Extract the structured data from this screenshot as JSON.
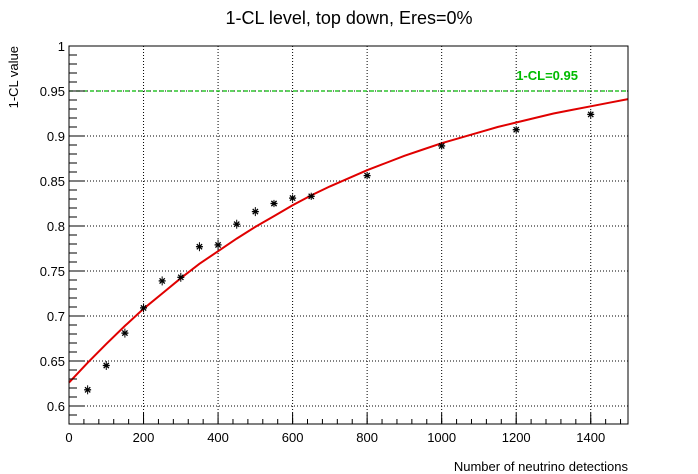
{
  "chart_data": {
    "type": "scatter",
    "title": "1-CL level, top down, Eres=0%",
    "xlabel": "Number of neutrino detections",
    "ylabel": "1-CL value",
    "xlim": [
      0,
      1500
    ],
    "ylim": [
      0.58,
      1.0
    ],
    "grid": true,
    "x_ticks": [
      0,
      200,
      400,
      600,
      800,
      1000,
      1200,
      1400
    ],
    "x_tick_labels": [
      "0",
      "200",
      "400",
      "600",
      "800",
      "1000",
      "1200",
      "1400"
    ],
    "y_ticks": [
      0.6,
      0.65,
      0.7,
      0.75,
      0.8,
      0.85,
      0.9,
      0.95,
      1.0
    ],
    "y_tick_labels": [
      "0.6",
      "0.65",
      "0.7",
      "0.75",
      "0.8",
      "0.85",
      "0.9",
      "0.95",
      "1"
    ],
    "series": [
      {
        "type": "scatter",
        "marker": "asterisk",
        "color": "#000000",
        "x": [
          50,
          100,
          150,
          200,
          250,
          300,
          350,
          400,
          450,
          500,
          550,
          600,
          650,
          800,
          1000,
          1200,
          1400
        ],
        "y": [
          0.618,
          0.645,
          0.681,
          0.709,
          0.739,
          0.743,
          0.777,
          0.779,
          0.802,
          0.816,
          0.825,
          0.831,
          0.833,
          0.856,
          0.889,
          0.907,
          0.924
        ],
        "y_err": [
          0.005,
          0.005,
          0.005,
          0.005,
          0.005,
          0.005,
          0.005,
          0.006,
          0.005,
          0.005,
          0.004,
          0.004,
          0.004,
          0.004,
          0.004,
          0.004,
          0.004
        ]
      },
      {
        "type": "line",
        "role": "fit",
        "color": "#e00000",
        "x": [
          0,
          50,
          100,
          150,
          200,
          250,
          300,
          350,
          400,
          450,
          500,
          550,
          600,
          650,
          700,
          750,
          800,
          850,
          900,
          950,
          1000,
          1050,
          1100,
          1150,
          1200,
          1250,
          1300,
          1350,
          1400,
          1450,
          1500
        ],
        "y": [
          0.626,
          0.648,
          0.669,
          0.689,
          0.708,
          0.725,
          0.742,
          0.758,
          0.772,
          0.786,
          0.799,
          0.811,
          0.823,
          0.834,
          0.844,
          0.853,
          0.862,
          0.87,
          0.878,
          0.885,
          0.892,
          0.898,
          0.904,
          0.91,
          0.915,
          0.92,
          0.925,
          0.929,
          0.933,
          0.937,
          0.941
        ]
      }
    ],
    "reference_line": {
      "y": 0.95,
      "label": "1-CL=0.95",
      "color": "#00bb00",
      "style": "dashed"
    }
  }
}
